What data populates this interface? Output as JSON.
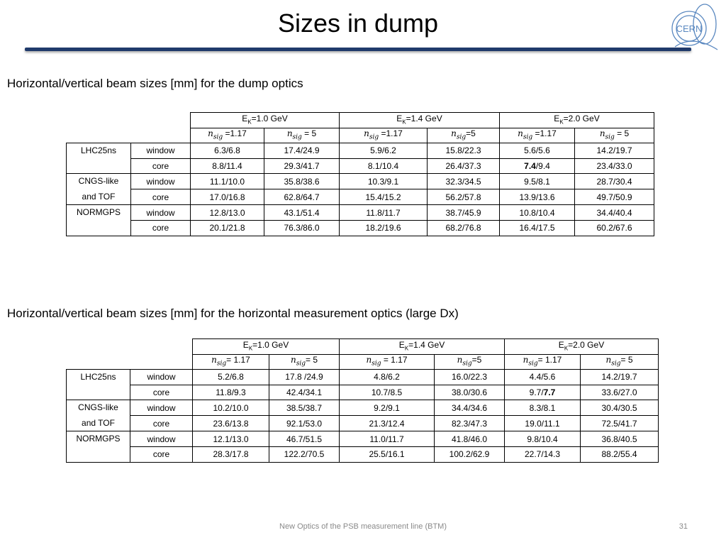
{
  "slide": {
    "title": "Sizes in dump",
    "logo_text": "CERN",
    "footer": "New Optics of the PSB measurement line (BTM)",
    "page_number": "31",
    "accent_color": "#1f3a6b"
  },
  "tables": [
    {
      "caption": "Horizontal/vertical beam sizes [mm] for the dump optics",
      "energy_headers": [
        {
          "pre": "E",
          "sub": "K",
          "post": "=1.0 GeV"
        },
        {
          "pre": "E",
          "sub": "K",
          "post": "=1.4 GeV"
        },
        {
          "pre": "E",
          "sub": "K",
          "post": "=2.0 GeV"
        }
      ],
      "nsig_headers": [
        {
          "n": "n",
          "sub": "sig",
          "post": " =1.17"
        },
        {
          "n": "n",
          "sub": "sig",
          "post": " = 5"
        },
        {
          "n": "n",
          "sub": "sig",
          "post": " =1.17"
        },
        {
          "n": "n",
          "sub": "sig",
          "post": "=5"
        },
        {
          "n": "n",
          "sub": "sig",
          "post": " =1.17"
        },
        {
          "n": "n",
          "sub": "sig",
          "post": " = 5"
        }
      ],
      "groups": [
        {
          "label_lines": [
            "LHC25ns"
          ],
          "rows": [
            {
              "kind": "window",
              "cells": [
                "6.3/6.8",
                "17.4/24.9",
                "5.9/6.2",
                "15.8/22.3",
                "5.6/5.6",
                "14.2/19.7"
              ]
            },
            {
              "kind": "core",
              "cells": [
                "8.8/11.4",
                "29.3/41.7",
                "8.1/10.4",
                "26.4/37.3",
                "7.4/9.4",
                "23.4/33.0"
              ]
            }
          ]
        },
        {
          "label_lines": [
            "CNGS-like",
            "and TOF"
          ],
          "rows": [
            {
              "kind": "window",
              "cells": [
                "11.1/10.0",
                "35.8/38.6",
                "10.3/9.1",
                "32.3/34.5",
                "9.5/8.1",
                "28.7/30.4"
              ]
            },
            {
              "kind": "core",
              "cells": [
                "17.0/16.8",
                "62.8/64.7",
                "15.4/15.2",
                "56.2/57.8",
                "13.9/13.6",
                "49.7/50.9"
              ]
            }
          ]
        },
        {
          "label_lines": [
            "NORMGPS"
          ],
          "rows": [
            {
              "kind": "window",
              "cells": [
                "12.8/13.0",
                "43.1/51.4",
                "11.8/11.7",
                "38.7/45.9",
                "10.8/10.4",
                "34.4/40.4"
              ]
            },
            {
              "kind": "core",
              "cells": [
                "20.1/21.8",
                "76.3/86.0",
                "18.2/19.6",
                "68.2/76.8",
                "16.4/17.5",
                "60.2/67.6"
              ]
            }
          ]
        }
      ]
    },
    {
      "caption": "Horizontal/vertical beam sizes [mm] for the horizontal measurement optics (large Dx)",
      "energy_headers": [
        {
          "pre": "E",
          "sub": "K",
          "post": "=1.0 GeV"
        },
        {
          "pre": "E",
          "sub": "K",
          "post": "=1.4 GeV"
        },
        {
          "pre": "E",
          "sub": "K",
          "post": "=2.0 GeV"
        }
      ],
      "nsig_headers": [
        {
          "n": "n",
          "sub": "sig",
          "post": "= 1.17"
        },
        {
          "n": "n",
          "sub": "sig",
          "post": "= 5"
        },
        {
          "n": "n",
          "sub": "sig",
          "post": " = 1.17"
        },
        {
          "n": "n",
          "sub": "sig",
          "post": "=5"
        },
        {
          "n": "n",
          "sub": "sig",
          "post": "= 1.17"
        },
        {
          "n": "n",
          "sub": "sig",
          "post": "= 5"
        }
      ],
      "groups": [
        {
          "label_lines": [
            "LHC25ns"
          ],
          "rows": [
            {
              "kind": "window",
              "cells": [
                "5.2/6.8",
                "17.8 /24.9",
                "4.8/6.2",
                "16.0/22.3",
                "4.4/5.6",
                "14.2/19.7"
              ]
            },
            {
              "kind": "core",
              "cells": [
                "11.8/9.3",
                "42.4/34.1",
                "10.7/8.5",
                "38.0/30.6",
                "9.7/7.7",
                "33.6/27.0"
              ]
            }
          ]
        },
        {
          "label_lines": [
            "CNGS-like",
            "and TOF"
          ],
          "rows": [
            {
              "kind": "window",
              "cells": [
                "10.2/10.0",
                "38.5/38.7",
                "9.2/9.1",
                "34.4/34.6",
                "8.3/8.1",
                "30.4/30.5"
              ]
            },
            {
              "kind": "core",
              "cells": [
                "23.6/13.8",
                "92.1/53.0",
                "21.3/12.4",
                "82.3/47.3",
                "19.0/11.1",
                "72.5/41.7"
              ]
            }
          ]
        },
        {
          "label_lines": [
            "NORMGPS"
          ],
          "rows": [
            {
              "kind": "window",
              "cells": [
                "12.1/13.0",
                "46.7/51.5",
                "11.0/11.7",
                "41.8/46.0",
                "9.8/10.4",
                "36.8/40.5"
              ]
            },
            {
              "kind": "core",
              "cells": [
                "28.3/17.8",
                "122.2/70.5",
                "25.5/16.1",
                "100.2/62.9",
                "22.7/14.3",
                "88.2/55.4"
              ]
            }
          ]
        }
      ]
    }
  ]
}
